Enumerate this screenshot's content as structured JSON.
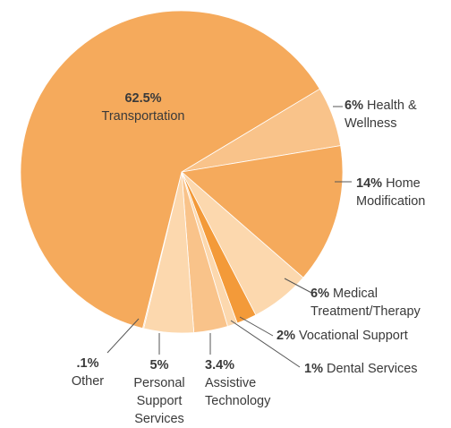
{
  "chart_data": {
    "type": "pie",
    "categories": [
      "Health & Wellness",
      "Home Modification",
      "Medical Treatment/Therapy",
      "Vocational Support",
      "Dental Services",
      "Assistive Technology",
      "Personal Support Services",
      "Other",
      "Transportation"
    ],
    "values": [
      6,
      14,
      6,
      2,
      1,
      3.4,
      5,
      0.1,
      62.5
    ],
    "value_labels": [
      "6%",
      "14%",
      "6%",
      "2%",
      "1%",
      "3.4%",
      "5%",
      ".1%",
      "62.5%"
    ],
    "colors": [
      "#f9c38a",
      "#f5aa5c",
      "#fcd8ae",
      "#f39a39",
      "#fcd8ae",
      "#f9c38a",
      "#fcd8ae",
      "#f9c38a",
      "#f5aa5c"
    ]
  }
}
